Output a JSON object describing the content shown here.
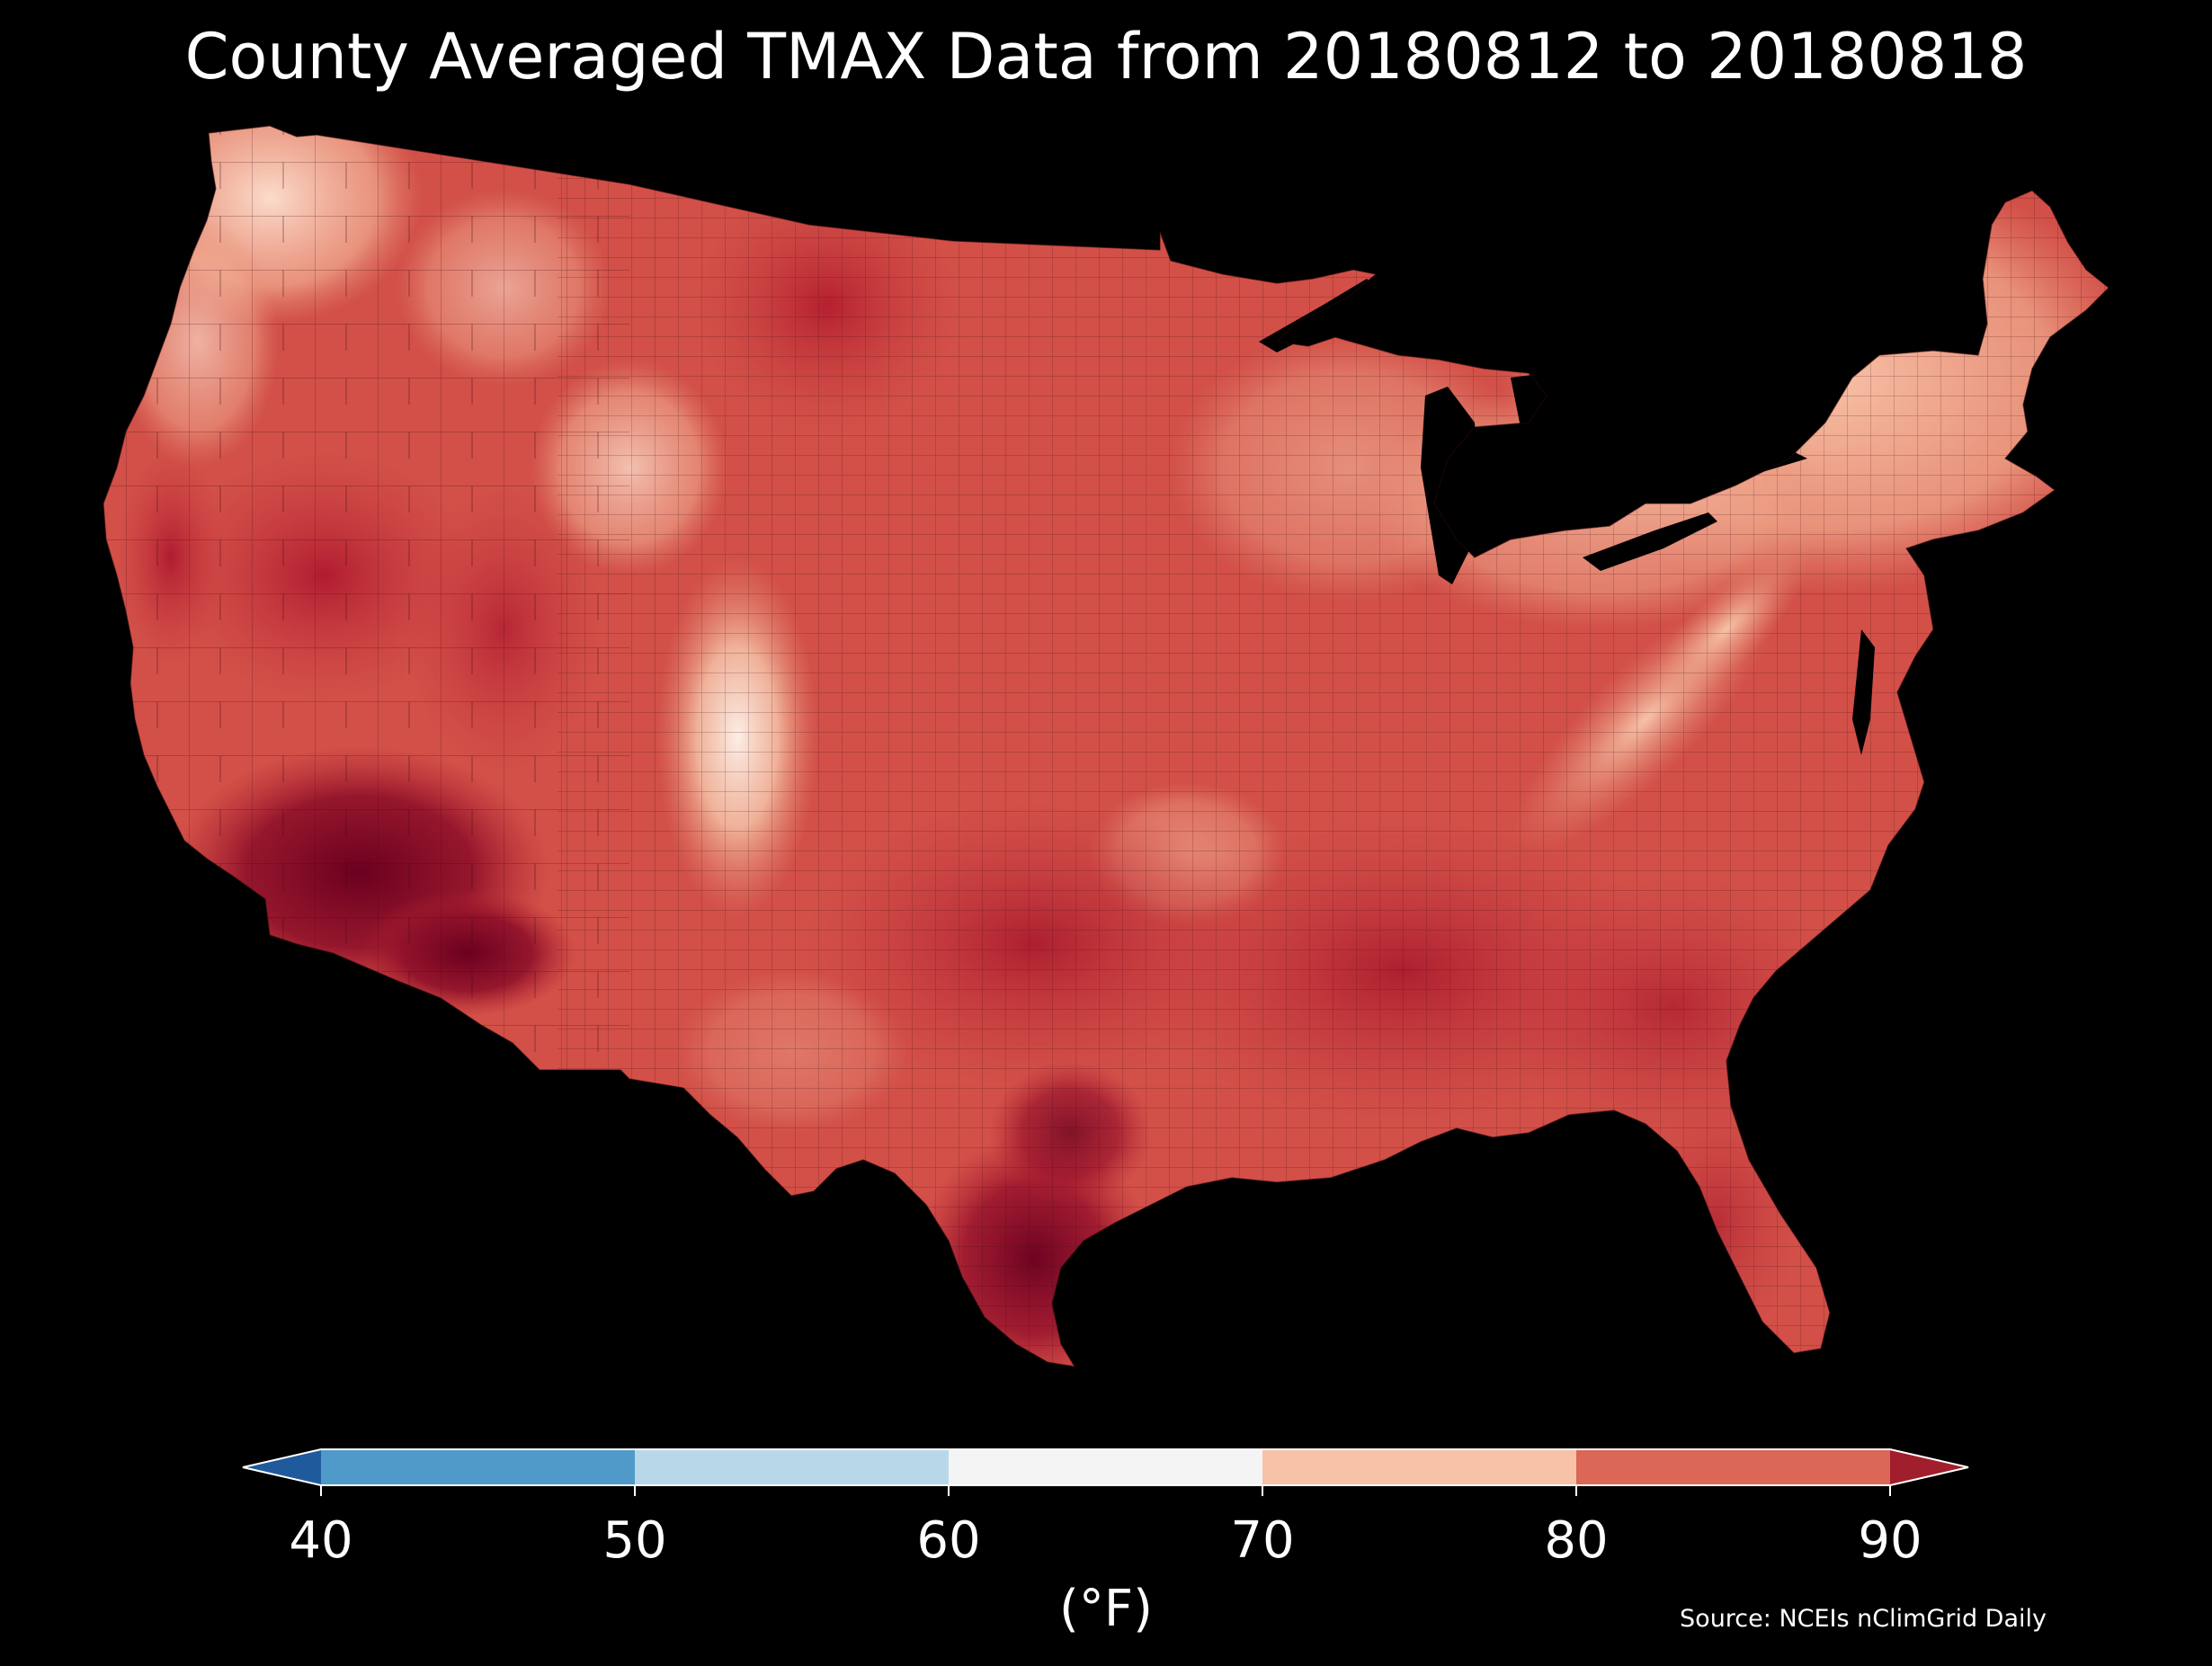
{
  "title": "County Averaged TMAX Data from 20180812 to 20180818",
  "colorbar": {
    "ticks": [
      "40",
      "50",
      "60",
      "70",
      "80",
      "90"
    ],
    "unit": "(°F)",
    "bins": [
      {
        "from": 40,
        "to": 50,
        "color": "#4f9ac9"
      },
      {
        "from": 50,
        "to": 60,
        "color": "#b8d8ea"
      },
      {
        "from": 60,
        "to": 70,
        "color": "#f4f4f4"
      },
      {
        "from": 70,
        "to": 80,
        "color": "#f7c2a7"
      },
      {
        "from": 80,
        "to": 90,
        "color": "#db6756"
      }
    ],
    "under_color": "#1f5a9c",
    "over_color": "#a11e2d"
  },
  "source": "Source: NCEIs nClimGrid Daily"
}
